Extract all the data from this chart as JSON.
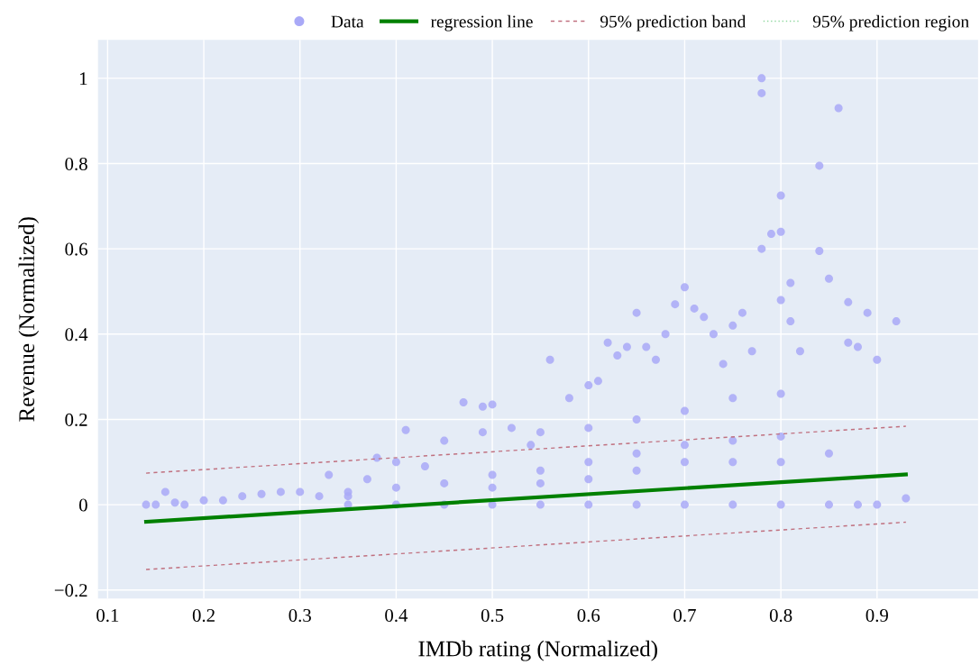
{
  "chart_data": {
    "type": "scatter",
    "xlabel": "IMDb rating (Normalized)",
    "ylabel": "Revenue (Normalized)",
    "xlim": [
      0.09,
      1.005
    ],
    "ylim": [
      -0.22,
      1.09
    ],
    "xticks": [
      0.1,
      0.2,
      0.3,
      0.4,
      0.5,
      0.6,
      0.7,
      0.8,
      0.9
    ],
    "yticks": [
      {
        "value": -0.2,
        "label": "−0.2"
      },
      0,
      0.2,
      0.4,
      0.6,
      0.8,
      1
    ],
    "grid": true,
    "legend": "top right",
    "series": [
      {
        "name": "Data",
        "marker": "circle",
        "color": "#a9a9f7",
        "x": [
          0.14,
          0.15,
          0.16,
          0.17,
          0.18,
          0.2,
          0.22,
          0.24,
          0.26,
          0.28,
          0.3,
          0.32,
          0.33,
          0.35,
          0.37,
          0.38,
          0.4,
          0.41,
          0.43,
          0.45,
          0.47,
          0.49,
          0.49,
          0.5,
          0.52,
          0.54,
          0.55,
          0.56,
          0.58,
          0.6,
          0.61,
          0.62,
          0.63,
          0.64,
          0.65,
          0.66,
          0.67,
          0.68,
          0.69,
          0.7,
          0.71,
          0.72,
          0.73,
          0.74,
          0.75,
          0.76,
          0.77,
          0.78,
          0.78,
          0.78,
          0.79,
          0.8,
          0.8,
          0.8,
          0.81,
          0.81,
          0.82,
          0.84,
          0.84,
          0.85,
          0.86,
          0.87,
          0.87,
          0.88,
          0.89,
          0.9,
          0.92,
          0.93,
          0.88,
          0.35,
          0.4,
          0.45,
          0.5,
          0.55,
          0.6,
          0.65,
          0.7,
          0.75,
          0.8,
          0.85,
          0.9,
          0.35,
          0.4,
          0.45,
          0.5,
          0.55,
          0.6,
          0.65,
          0.7,
          0.75,
          0.8,
          0.85,
          0.5,
          0.55,
          0.6,
          0.65,
          0.7,
          0.75,
          0.8,
          0.6,
          0.65,
          0.7,
          0.75,
          0.8
        ],
        "values": [
          0,
          0,
          0.03,
          0.005,
          0,
          0.01,
          0.01,
          0.02,
          0.025,
          0.03,
          0.03,
          0.02,
          0.07,
          0.03,
          0.06,
          0.11,
          0.1,
          0.175,
          0.09,
          0.15,
          0.24,
          0.17,
          0.23,
          0.235,
          0.18,
          0.14,
          0.17,
          0.34,
          0.25,
          0.28,
          0.29,
          0.38,
          0.35,
          0.37,
          0.45,
          0.37,
          0.34,
          0.4,
          0.47,
          0.51,
          0.46,
          0.44,
          0.4,
          0.33,
          0.42,
          0.45,
          0.36,
          1.0,
          0.965,
          0.6,
          0.635,
          0.725,
          0.64,
          0.48,
          0.52,
          0.43,
          0.36,
          0.795,
          0.595,
          0.53,
          0.93,
          0.475,
          0.38,
          0.37,
          0.45,
          0.34,
          0.43,
          0.015,
          0.0,
          0,
          0,
          0,
          0,
          0,
          0,
          0,
          0,
          0,
          0,
          0,
          0,
          0.02,
          0.04,
          0.05,
          0.07,
          0.08,
          0.1,
          0.12,
          0.14,
          0.15,
          0.16,
          0.12,
          0.04,
          0.05,
          0.06,
          0.08,
          0.1,
          0.1,
          0.1,
          0.18,
          0.2,
          0.22,
          0.25,
          0.26
        ]
      },
      {
        "name": "regression line",
        "type": "line",
        "color": "#008000",
        "line_style": "solid",
        "x": [
          0.14,
          0.93
        ],
        "values": [
          -0.04,
          0.071
        ]
      },
      {
        "name": "95% prediction band",
        "type": "line",
        "color": "#c0707f",
        "line_style": "dashed",
        "x": [
          0.14,
          0.93
        ],
        "values": [
          0.074,
          0.184
        ]
      },
      {
        "type": "line",
        "color": "#c0707f",
        "line_style": "dashed",
        "x": [
          0.14,
          0.93
        ],
        "values": [
          -0.152,
          -0.041
        ]
      },
      {
        "name": "95% prediction region",
        "type": "line",
        "color": "#90d8a0",
        "line_style": "dotted"
      }
    ]
  }
}
